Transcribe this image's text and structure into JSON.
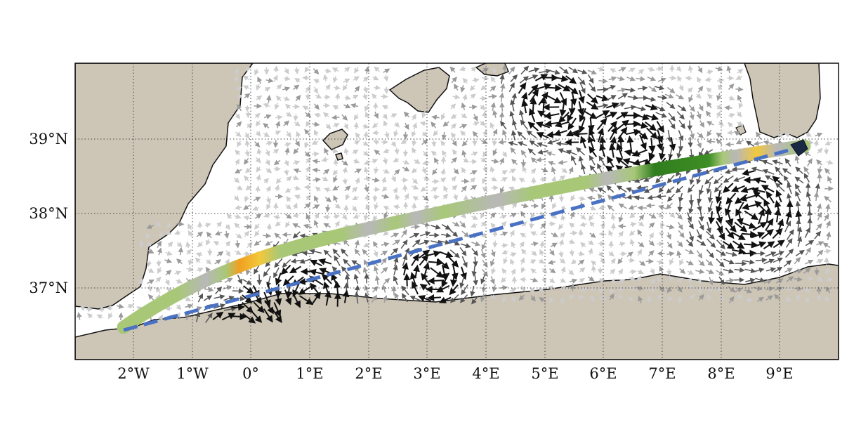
{
  "map": {
    "lon_range": [
      -3,
      10
    ],
    "lat_range": [
      36,
      40
    ],
    "grid": "dotted",
    "land_color": "#cdc5b6",
    "sea_color": "#ffffff",
    "coast_color": "#111111",
    "x_tick_labels": [
      "2°W",
      "1°W",
      "0°",
      "1°E",
      "2°E",
      "3°E",
      "4°E",
      "5°E",
      "6°E",
      "7°E",
      "8°E",
      "9°E"
    ],
    "y_tick_labels": [
      "39°N",
      "38°N",
      "37°N"
    ],
    "track": {
      "start": [
        -2.1,
        36.45
      ],
      "end": [
        9.4,
        38.88
      ],
      "colors": {
        "light_green": "#a8c878",
        "grey": "#b8b8b8",
        "yellow": "#f2c83c",
        "orange": "#f0a020",
        "dark_green": "#2f7d1e"
      }
    },
    "great_circle": {
      "color": "#4a72c4",
      "style": "dashed",
      "start": [
        -2.1,
        36.45
      ],
      "end": [
        9.4,
        38.88
      ]
    },
    "end_marker_color": "#1b2a44",
    "current_arrows": {
      "colors": [
        "#111111",
        "#555555",
        "#9a9a9a",
        "#cccccc"
      ]
    }
  }
}
